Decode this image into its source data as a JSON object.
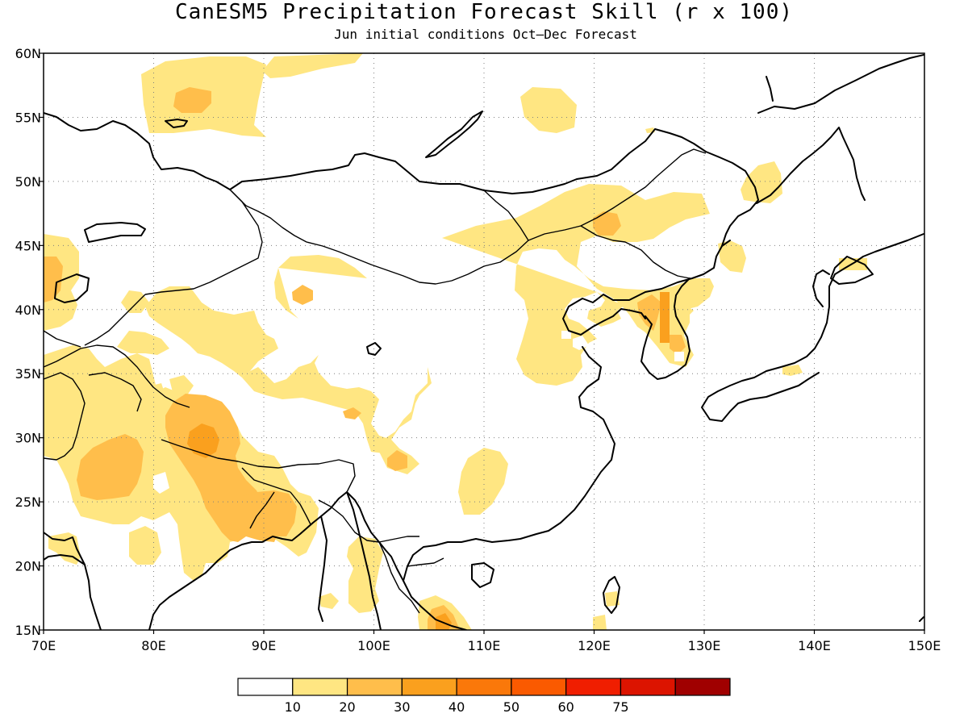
{
  "title": "CanESM5 Precipitation Forecast Skill (r x 100)",
  "subtitle": "Jun initial conditions  Oct–Dec Forecast",
  "map": {
    "lon_range": [
      70,
      150
    ],
    "lat_range": [
      15,
      60
    ],
    "lon_ticks": [
      "70E",
      "80E",
      "90E",
      "100E",
      "110E",
      "120E",
      "130E",
      "140E",
      "150E"
    ],
    "lat_ticks": [
      "60N",
      "55N",
      "50N",
      "45N",
      "40N",
      "35N",
      "30N",
      "25N",
      "20N",
      "15N"
    ],
    "grid": true,
    "colors": {
      "level_10_20": "#ffe682",
      "level_20_30": "#ffbe4b",
      "level_30_40": "#faa01e",
      "coastline": "#000000"
    }
  },
  "colorbar": {
    "colors": [
      "#ffffff",
      "#ffe682",
      "#ffbe4b",
      "#faa01e",
      "#fa780a",
      "#fa5a00",
      "#f01e00",
      "#dc1400",
      "#a00000"
    ],
    "labels": [
      "10",
      "20",
      "30",
      "40",
      "50",
      "60",
      "75"
    ]
  }
}
